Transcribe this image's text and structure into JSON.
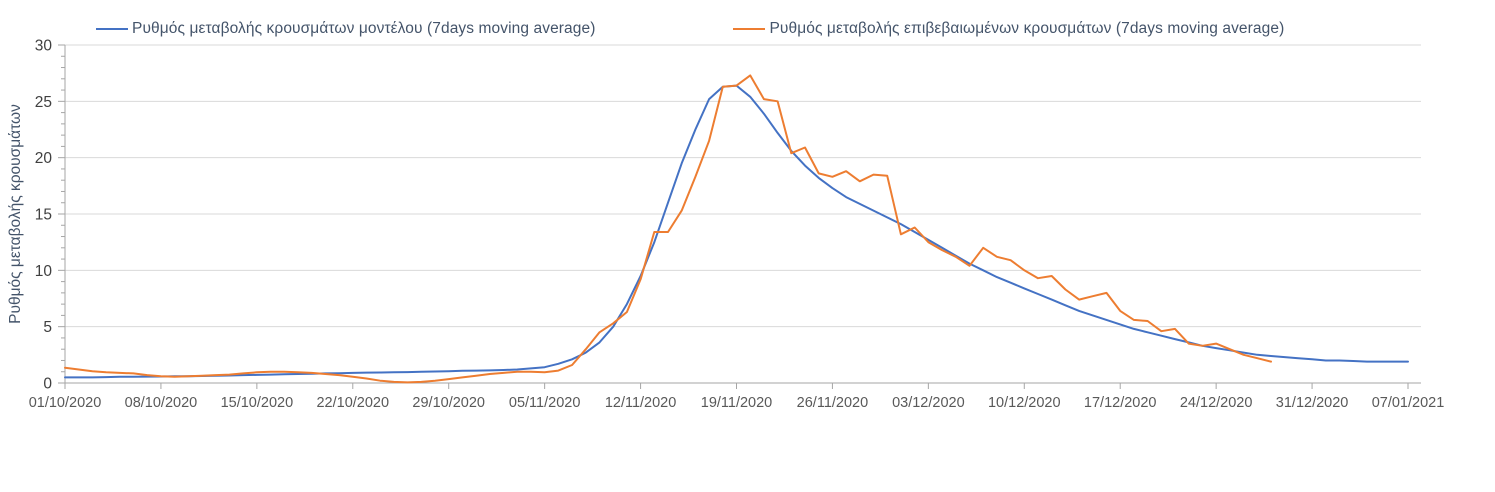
{
  "chart_data": {
    "type": "line",
    "title": "",
    "xlabel": "",
    "ylabel": "Ρυθμός μεταβολής κρουσμάτων",
    "ylim": [
      0,
      30
    ],
    "y_ticks": [
      0,
      5,
      10,
      15,
      20,
      25,
      30
    ],
    "grid": true,
    "legend_position": "top",
    "x_start": "01/10/2020",
    "x_step_days": 1,
    "x_tick_day_interval": 7,
    "x_tick_labels": [
      "01/10/2020",
      "08/10/2020",
      "15/10/2020",
      "22/10/2020",
      "29/10/2020",
      "05/11/2020",
      "12/11/2020",
      "19/11/2020",
      "26/11/2020",
      "03/12/2020",
      "10/12/2020",
      "17/12/2020",
      "24/12/2020",
      "31/12/2020",
      "07/01/2021"
    ],
    "series": [
      {
        "name": "Ρυθμός μεταβολής κρουσμάτων μοντέλου (7days moving average)",
        "color": "#4472C4",
        "values": [
          0.5,
          0.5,
          0.5,
          0.52,
          0.55,
          0.55,
          0.57,
          0.58,
          0.6,
          0.6,
          0.62,
          0.65,
          0.67,
          0.7,
          0.72,
          0.75,
          0.77,
          0.8,
          0.82,
          0.85,
          0.87,
          0.9,
          0.92,
          0.93,
          0.95,
          0.97,
          1.0,
          1.02,
          1.05,
          1.08,
          1.1,
          1.12,
          1.15,
          1.2,
          1.3,
          1.4,
          1.7,
          2.1,
          2.7,
          3.6,
          5.0,
          7.0,
          9.5,
          12.5,
          16.0,
          19.5,
          22.5,
          25.2,
          26.3,
          26.4,
          25.4,
          23.9,
          22.2,
          20.6,
          19.3,
          18.2,
          17.3,
          16.5,
          15.9,
          15.3,
          14.7,
          14.1,
          13.4,
          12.7,
          12.0,
          11.3,
          10.6,
          10.0,
          9.4,
          8.9,
          8.4,
          7.9,
          7.4,
          6.9,
          6.4,
          6.0,
          5.6,
          5.2,
          4.8,
          4.5,
          4.2,
          3.9,
          3.6,
          3.3,
          3.1,
          2.9,
          2.7,
          2.5,
          2.4,
          2.3,
          2.2,
          2.1,
          2.0,
          2.0,
          1.95,
          1.9,
          1.9,
          1.9,
          1.9
        ]
      },
      {
        "name": "Ρυθμός μεταβολής επιβεβαιωμένων κρουσμάτων (7days moving average)",
        "color": "#ED7D31",
        "values": [
          1.35,
          1.2,
          1.05,
          0.95,
          0.9,
          0.85,
          0.7,
          0.6,
          0.55,
          0.6,
          0.65,
          0.7,
          0.75,
          0.85,
          0.95,
          1.0,
          1.0,
          0.95,
          0.9,
          0.8,
          0.7,
          0.55,
          0.4,
          0.2,
          0.1,
          0.05,
          0.1,
          0.2,
          0.35,
          0.5,
          0.65,
          0.8,
          0.9,
          1.0,
          1.0,
          0.95,
          1.1,
          1.6,
          3.0,
          4.5,
          5.3,
          6.3,
          9.2,
          13.4,
          13.4,
          15.3,
          18.3,
          21.5,
          26.3,
          26.4,
          27.3,
          25.2,
          25.0,
          20.4,
          20.9,
          18.6,
          18.3,
          18.8,
          17.9,
          18.5,
          18.4,
          13.2,
          13.8,
          12.5,
          11.8,
          11.2,
          10.4,
          12.0,
          11.2,
          10.9,
          10.0,
          9.3,
          9.5,
          8.3,
          7.4,
          7.7,
          8.0,
          6.4,
          5.6,
          5.5,
          4.6,
          4.8,
          3.5,
          3.3,
          3.5,
          3.0,
          2.5,
          2.2,
          1.9
        ]
      }
    ]
  },
  "colors": {
    "gridline": "#d9d9d9",
    "axis": "#a6a6a6",
    "tick_text": "#595959",
    "label_text": "#44546a"
  }
}
